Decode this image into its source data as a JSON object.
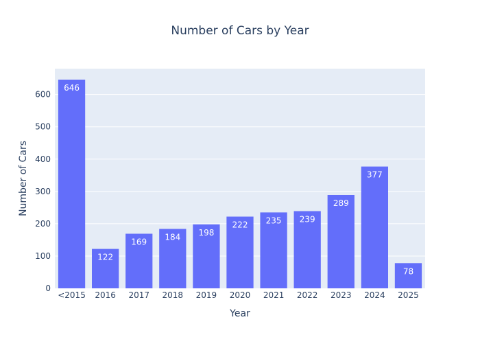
{
  "chart_data": {
    "type": "bar",
    "title": "Number of Cars by Year",
    "xlabel": "Year",
    "ylabel": "Number of Cars",
    "categories": [
      "<2015",
      "2016",
      "2017",
      "2018",
      "2019",
      "2020",
      "2021",
      "2022",
      "2023",
      "2024",
      "2025"
    ],
    "values": [
      646,
      122,
      169,
      184,
      198,
      222,
      235,
      239,
      289,
      377,
      78
    ],
    "data_labels": [
      "646",
      "122",
      "169",
      "184",
      "198",
      "222",
      "235",
      "239",
      "289",
      "377",
      "78"
    ],
    "yticks": [
      0,
      100,
      200,
      300,
      400,
      500,
      600
    ],
    "ytick_labels": [
      "0",
      "100",
      "200",
      "300",
      "400",
      "500",
      "600"
    ],
    "ylim": [
      0,
      680
    ],
    "grid": true,
    "legend": false,
    "colors": {
      "bar": "#636efa",
      "plot_bg": "#e5ecf6",
      "grid": "#ffffff",
      "text": "#2a3f5f",
      "data_label": "#ffffff"
    }
  }
}
